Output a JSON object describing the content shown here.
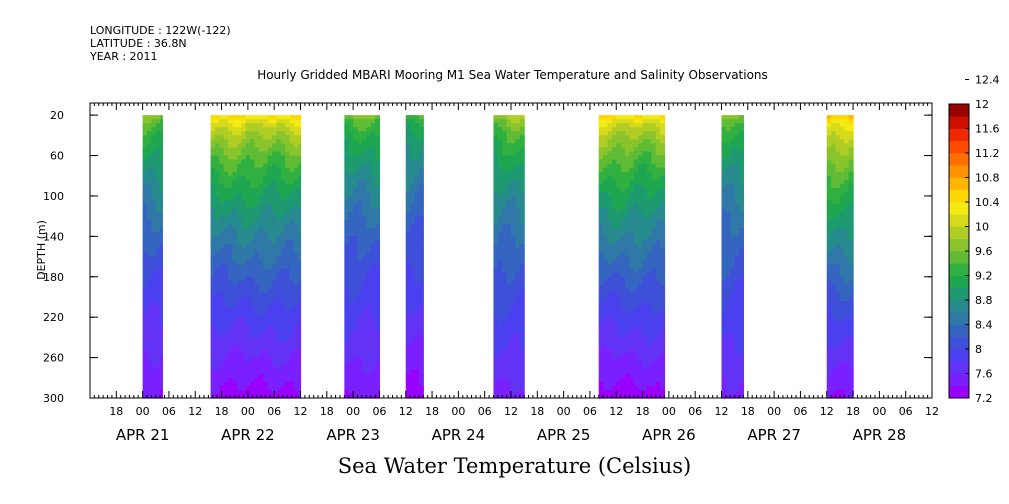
{
  "meta": {
    "longitude": "LONGITUDE : 122W(-122)",
    "latitude": "LATITUDE : 36.8N",
    "year": "YEAR : 2011"
  },
  "chart_data": {
    "type": "heatmap",
    "title": "Hourly Gridded MBARI Mooring M1 Sea Water Temperature and Salinity Observations",
    "ylabel": "DEPTH (m)",
    "colorbar_label": "Sea Water Temperature (Celsius)",
    "y_ticks": [
      "20",
      "60",
      "100",
      "140",
      "180",
      "220",
      "260",
      "300"
    ],
    "y_range": [
      300,
      8
    ],
    "x_range_hours_from_apr21_00": [
      -12,
      180
    ],
    "hour_tick_labels": [
      "18",
      "00",
      "06",
      "12",
      "18",
      "00",
      "06",
      "12",
      "18",
      "00",
      "06",
      "12",
      "18",
      "00",
      "06",
      "12",
      "18",
      "00",
      "06",
      "12",
      "18",
      "00",
      "06",
      "12",
      "18",
      "00",
      "06",
      "12",
      "18",
      "00",
      "06",
      "12"
    ],
    "date_labels": [
      "APR 21",
      "APR 22",
      "APR 23",
      "APR 24",
      "APR 25",
      "APR 26",
      "APR 27",
      "APR 28"
    ],
    "data_segments_hours": [
      [
        0,
        4.5
      ],
      [
        15.5,
        36
      ],
      [
        46,
        54
      ],
      [
        60,
        64
      ],
      [
        80,
        87
      ],
      [
        104,
        119
      ],
      [
        132,
        137
      ],
      [
        156,
        162
      ]
    ],
    "surface_max_c": [
      9.6,
      10.4,
      9.6,
      9.4,
      9.8,
      10.4,
      9.6,
      10.6
    ],
    "bottom_min_c": [
      7.4,
      7.3,
      7.4,
      7.3,
      7.5,
      7.3,
      7.5,
      7.4
    ],
    "colorbar_levels": [
      "7.2",
      "7.6",
      "8",
      "8.4",
      "8.8",
      "9.2",
      "9.6",
      "10",
      "10.4",
      "10.8",
      "11.2",
      "11.6",
      "12",
      "12.4"
    ],
    "colorbar_colors": [
      "#9900ff",
      "#7a20ff",
      "#6233f5",
      "#4a40f0",
      "#3e4fd8",
      "#3465c0",
      "#2f78a8",
      "#268a8f",
      "#1e9a70",
      "#1ea650",
      "#30b040",
      "#60bb35",
      "#8ac42c",
      "#b0cd25",
      "#d6d91c",
      "#f2ea10",
      "#ffd700",
      "#ffb600",
      "#ff9400",
      "#ff6e00",
      "#ff4a00",
      "#f02800",
      "#cc1000",
      "#990000"
    ],
    "colorbar_tick_labels": [
      "12.4",
      "12",
      "11.6",
      "11.2",
      "10.8",
      "10.4",
      "10",
      "9.6",
      "9.2",
      "8.8",
      "8.4",
      "8",
      "7.6",
      "7.2"
    ]
  }
}
